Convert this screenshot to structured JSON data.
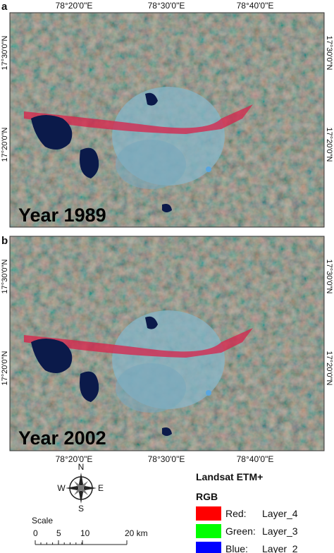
{
  "panels": [
    {
      "label": "a",
      "year_label": "Year 1989"
    },
    {
      "label": "b",
      "year_label": "Year 2002"
    }
  ],
  "longitude_labels": [
    "78°20'0\"E",
    "78°30'0\"E",
    "78°40'0\"E"
  ],
  "latitude_labels": [
    "17°30'0\"N",
    "17°20'0\"N"
  ],
  "compass": {
    "n": "N",
    "s": "S",
    "e": "E",
    "w": "W"
  },
  "scale": {
    "title": "Scale",
    "ticks": [
      "0",
      "5",
      "10",
      "20 km"
    ]
  },
  "legend": {
    "title": "Landsat ETM+",
    "subtitle": "RGB",
    "items": [
      {
        "band": "Red:",
        "layer": "Layer_4",
        "color": "#ff0000"
      },
      {
        "band": "Green:",
        "layer": "Layer_3",
        "color": "#00ff00"
      },
      {
        "band": "Blue:",
        "layer": "Layer_2",
        "color": "#0000ff"
      }
    ]
  }
}
